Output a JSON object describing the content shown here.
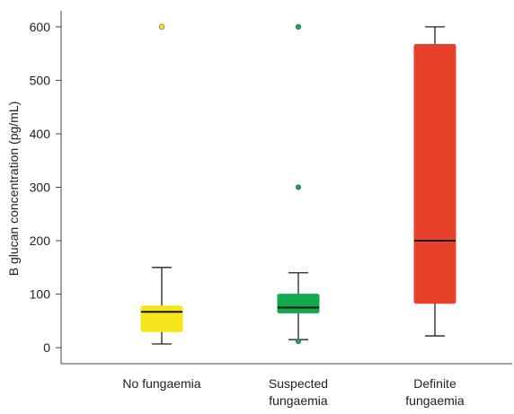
{
  "chart_data": {
    "type": "box",
    "ylabel": "B glucan concentration (pg/mL)",
    "categories": [
      "No fungaemia",
      "Suspected fungaemia",
      "Definite fungaemia"
    ],
    "boxes": [
      {
        "min": 7,
        "q1": 30,
        "median": 67,
        "q3": 78,
        "max": 150,
        "outliers": [
          600
        ],
        "color": "#f5e51a"
      },
      {
        "min": 15,
        "q1": 65,
        "median": 75,
        "q3": 100,
        "max": 140,
        "outliers": [
          600,
          300,
          12
        ],
        "color": "#12a84e"
      },
      {
        "min": 22,
        "q1": 83,
        "median": 200,
        "q3": 567,
        "max": 600,
        "outliers": [],
        "color": "#e8412a"
      }
    ],
    "ylim": [
      -30,
      625
    ],
    "yticks": [
      0,
      100,
      200,
      300,
      400,
      500,
      600
    ]
  }
}
